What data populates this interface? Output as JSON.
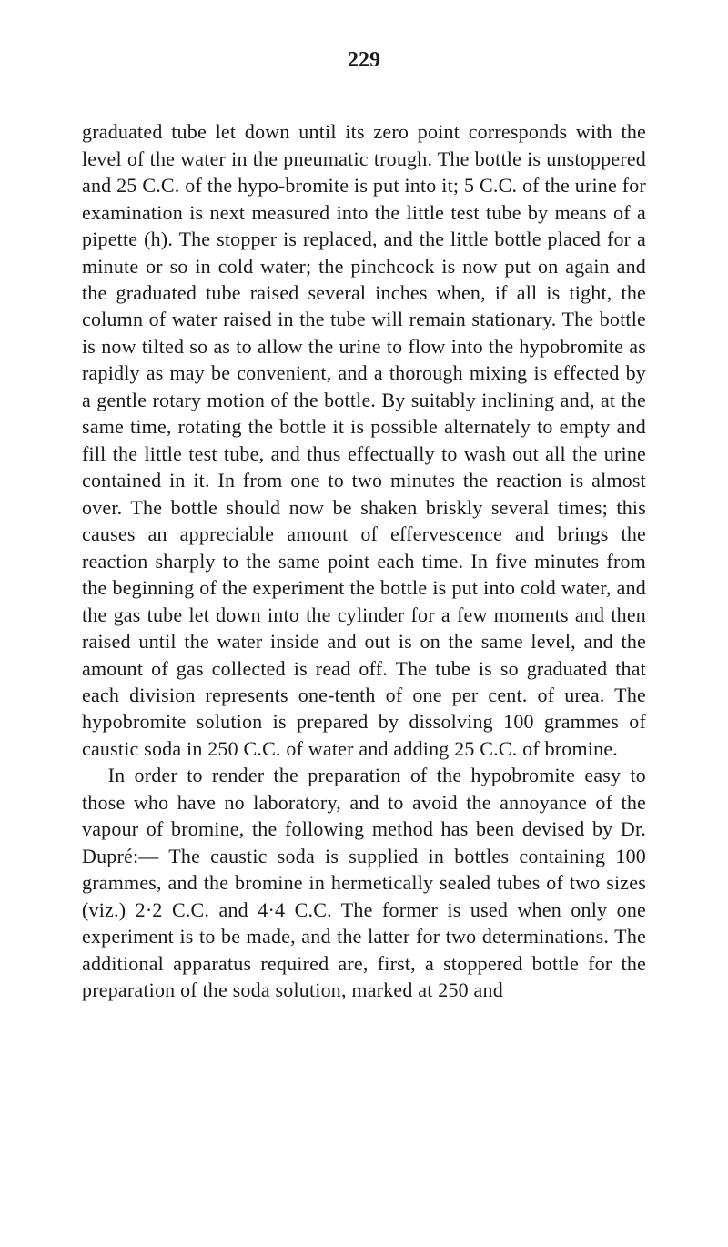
{
  "page": {
    "number": "229",
    "text": "graduated tube let down until its zero point corresponds with the level of the water in the pneumatic trough. The bottle is unstoppered and 25 C.C. of the hypo-bromite is put into it; 5 C.C. of the urine for examination is next measured into the little test tube by means of a pipette (h). The stopper is replaced, and the little bottle placed for a minute or so in cold water; the pinchcock is now put on again and the graduated tube raised several inches when, if all is tight, the column of water raised in the tube will remain stationary. The bottle is now tilted so as to allow the urine to flow into the hypobromite as rapidly as may be convenient, and a thorough mixing is effected by a gentle rotary motion of the bottle. By suitably inclining and, at the same time, rotating the bottle it is possible alternately to empty and fill the little test tube, and thus effectually to wash out all the urine contained in it. In from one to two minutes the reaction is almost over. The bottle should now be shaken briskly several times; this causes an appreciable amount of effervescence and brings the reaction sharply to the same point each time. In five minutes from the beginning of the experiment the bottle is put into cold water, and the gas tube let down into the cylinder for a few moments and then raised until the water inside and out is on the same level, and the amount of gas collected is read off. The tube is so graduated that each division represents one-tenth of one per cent. of urea. The hypobromite solution is prepared by dissolving 100 grammes of caustic soda in 250 C.C. of water and adding 25 C.C. of bromine.",
    "text2": "In order to render the preparation of the hypobromite easy to those who have no laboratory, and to avoid the annoyance of the vapour of bromine, the following method has been devised by Dr. Dupré:— The caustic soda is supplied in bottles containing 100 grammes, and the bromine in hermetically sealed tubes of two sizes (viz.) 2·2 C.C. and 4·4 C.C. The former is used when only one experiment is to be made, and the latter for two determinations. The additional apparatus required are, first, a stoppered bottle for the preparation of the soda solution, marked at 250 and"
  },
  "style": {
    "background_color": "#ffffff",
    "text_color": "#1a1a1a",
    "font_size_body": 22,
    "font_size_pagenum": 24
  }
}
